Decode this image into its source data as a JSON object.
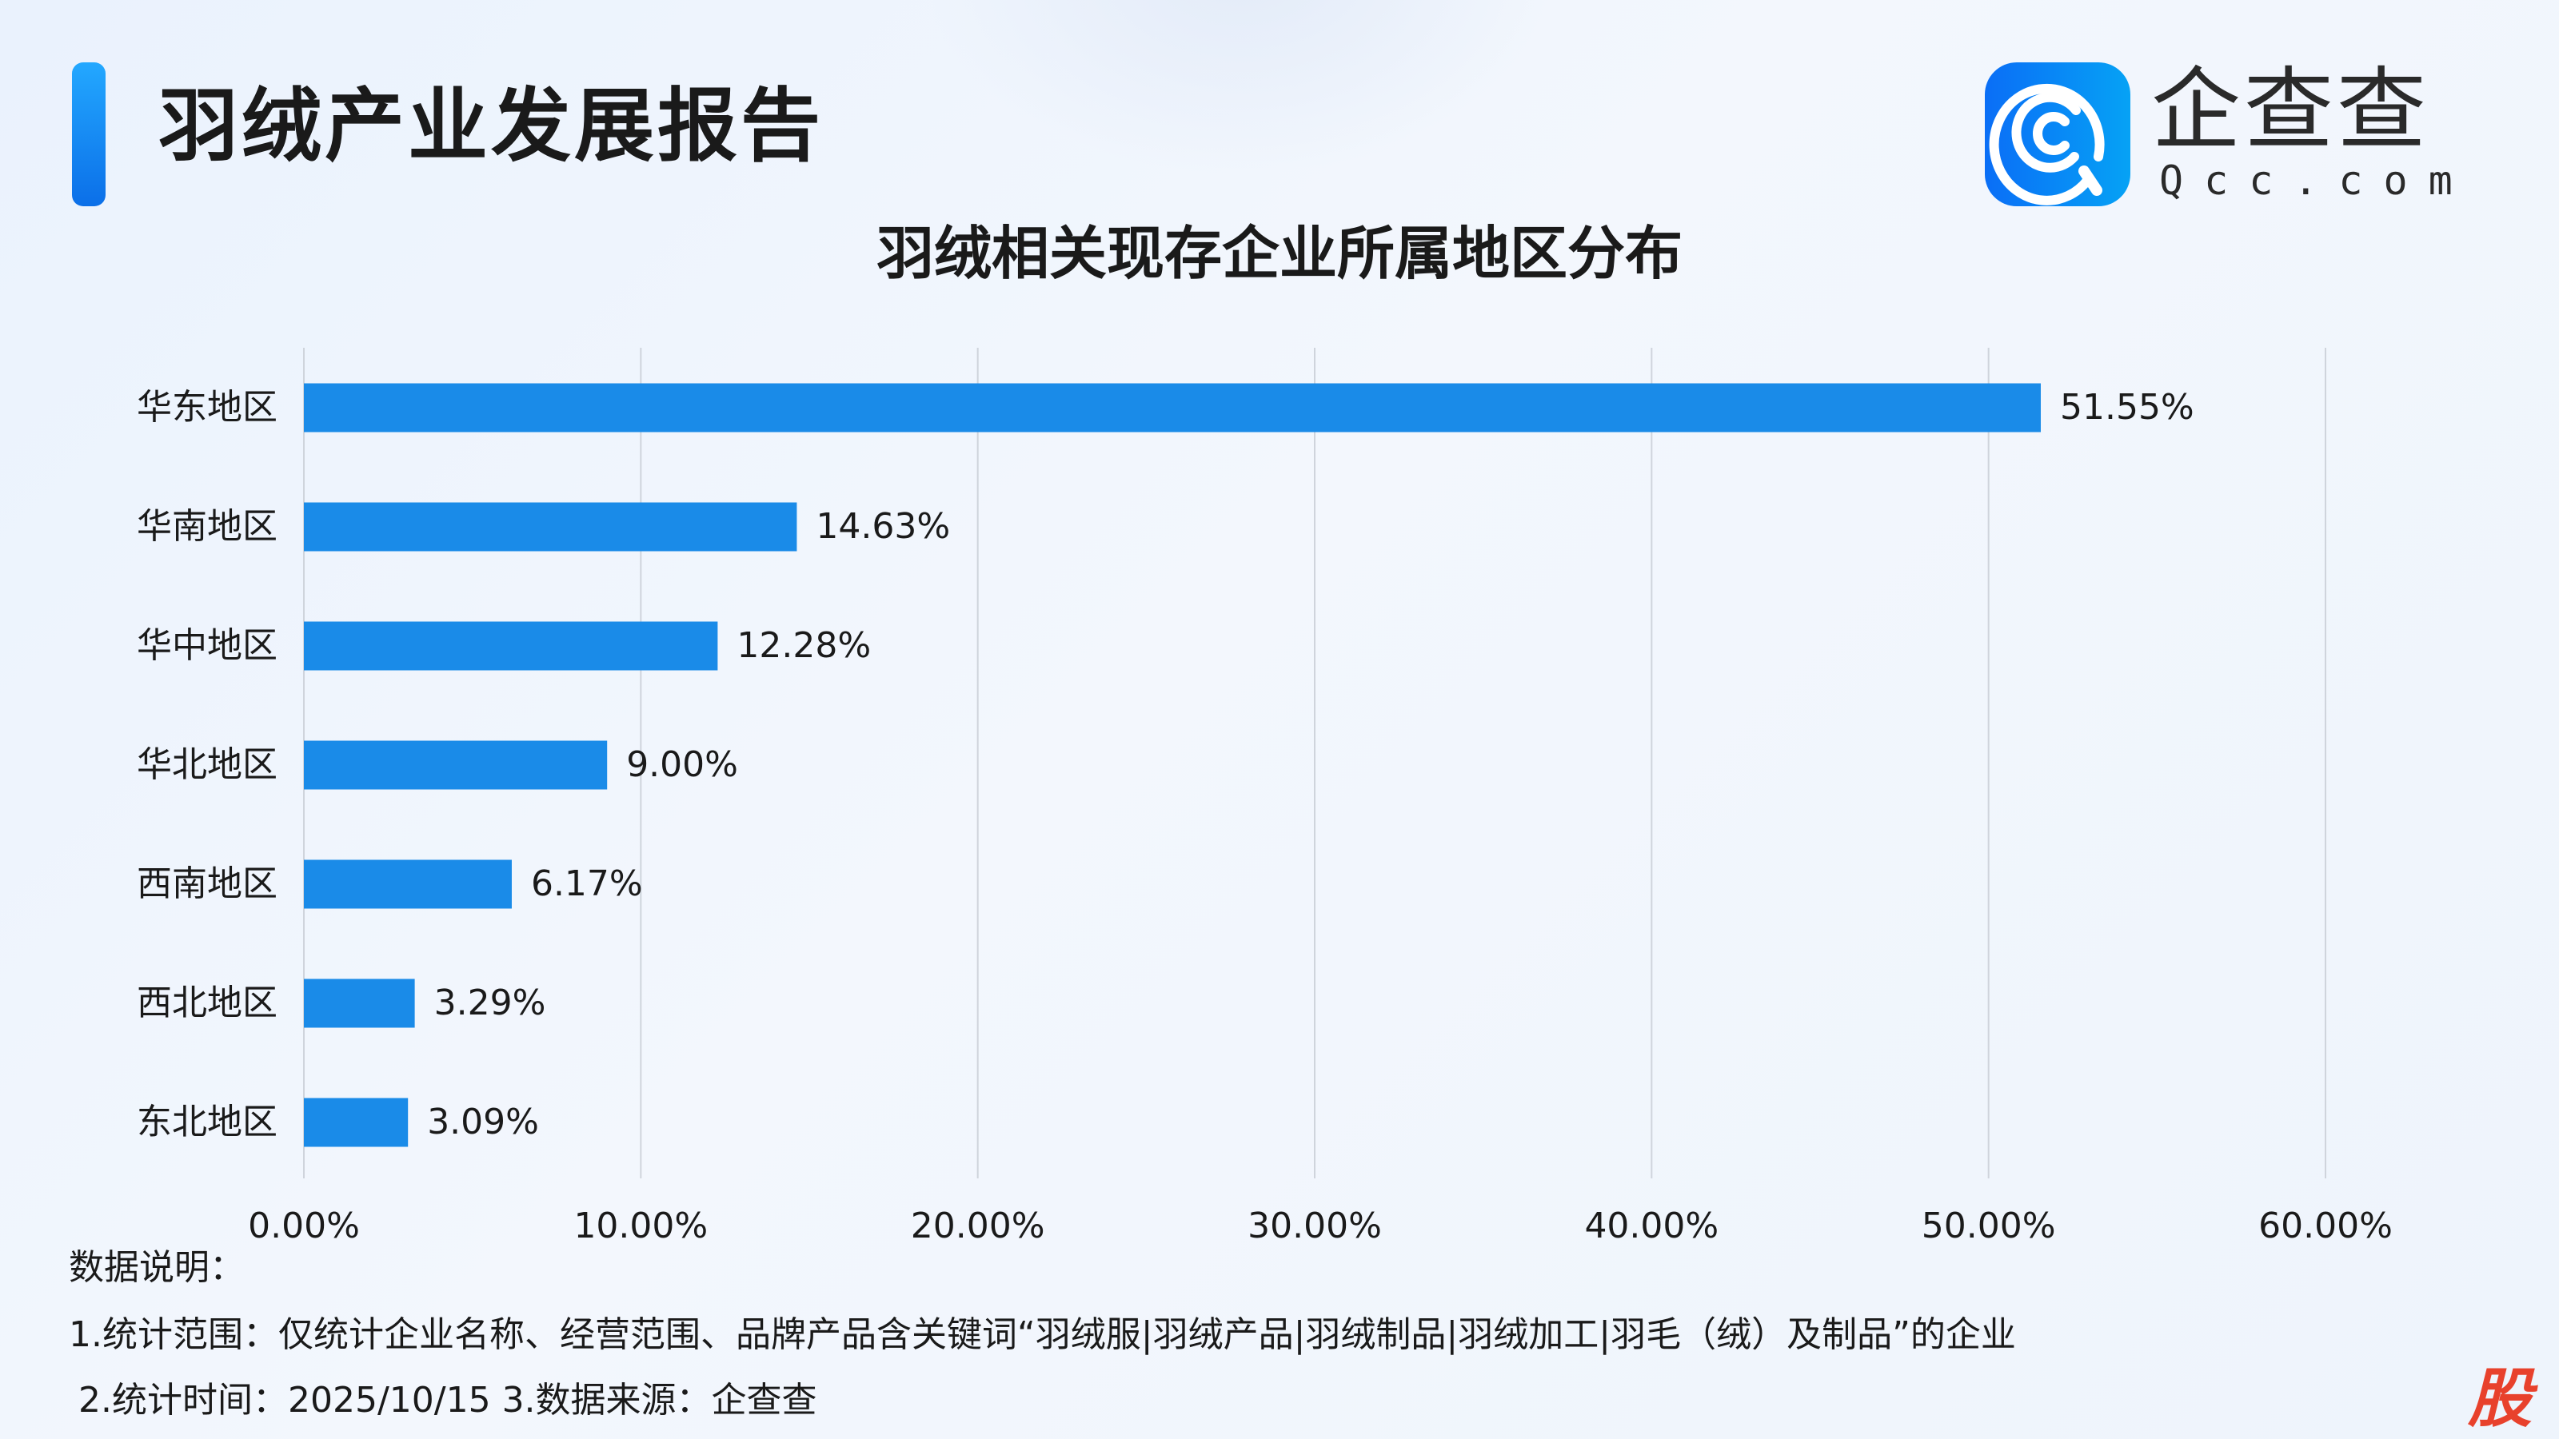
{
  "header": {
    "title": "羽绒产业发展报告"
  },
  "logo": {
    "name_cn": "企查查",
    "name_en": "Qcc.com"
  },
  "colors": {
    "bar": "#1a8be8",
    "accent": "#1688f0",
    "grid": "#cfd4dc",
    "stamp": "#e8412c"
  },
  "chart_data": {
    "type": "bar",
    "orientation": "horizontal",
    "title": "羽绒相关现存企业所属地区分布",
    "categories": [
      "华东地区",
      "华南地区",
      "华中地区",
      "华北地区",
      "西南地区",
      "西北地区",
      "东北地区"
    ],
    "values": [
      51.55,
      14.63,
      12.28,
      9.0,
      6.17,
      3.29,
      3.09
    ],
    "value_labels": [
      "51.55%",
      "14.63%",
      "12.28%",
      "9.00%",
      "6.17%",
      "3.29%",
      "3.09%"
    ],
    "xlim": [
      0,
      60
    ],
    "x_ticks": [
      "0.00%",
      "10.00%",
      "20.00%",
      "30.00%",
      "40.00%",
      "50.00%",
      "60.00%"
    ],
    "grid": "vertical",
    "legend": "none"
  },
  "notes": {
    "heading": "数据说明：",
    "line1": "1.统计范围：仅统计企业名称、经营范围、品牌产品含关键词“羽绒服|羽绒产品|羽绒制品|羽绒加工|羽毛（绒）及制品”的企业",
    "line2": "2.统计时间：2025/10/15 3.数据来源：企查查"
  },
  "watermark": "股"
}
